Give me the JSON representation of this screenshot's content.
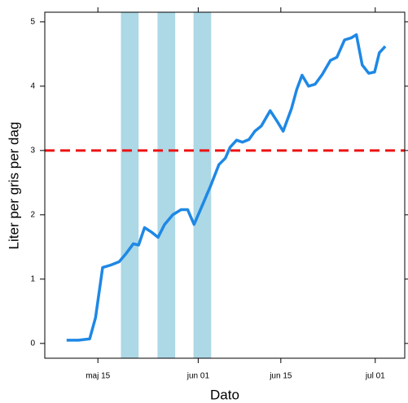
{
  "chart_data": {
    "type": "line",
    "xlabel": "Dato",
    "ylabel": "Liter per gris per dag",
    "x": [
      129.7,
      131.7,
      133.6,
      134.6,
      135.8,
      137.2,
      138.6,
      139.8,
      141.0,
      141.9,
      142.9,
      144.1,
      145.2,
      146.3,
      147.7,
      149.1,
      150.2,
      151.3,
      152.7,
      154.1,
      155.5,
      156.6,
      157.4,
      158.5,
      159.5,
      160.6,
      161.6,
      162.7,
      164.2,
      165.4,
      166.4,
      167.8,
      168.7,
      169.6,
      170.7,
      171.8,
      173.0,
      174.4,
      175.5,
      176.8,
      177.9,
      178.8,
      179.8,
      180.9,
      181.9,
      182.7,
      183.7
    ],
    "series": [
      {
        "color": "#1e88e5",
        "values": [
          0.05,
          0.05,
          0.07,
          0.4,
          1.18,
          1.22,
          1.27,
          1.4,
          1.55,
          1.53,
          1.8,
          1.73,
          1.65,
          1.85,
          2.0,
          2.08,
          2.08,
          1.85,
          2.15,
          2.45,
          2.78,
          2.88,
          3.05,
          3.16,
          3.13,
          3.17,
          3.3,
          3.38,
          3.62,
          3.45,
          3.3,
          3.65,
          3.95,
          4.17,
          4.0,
          4.03,
          4.18,
          4.4,
          4.45,
          4.72,
          4.75,
          4.8,
          4.33,
          4.2,
          4.22,
          4.52,
          4.62
        ]
      }
    ],
    "shaded_ranges": [
      [
        138.9,
        141.9
      ],
      [
        145.1,
        148.1
      ],
      [
        151.2,
        154.2
      ]
    ],
    "shade_color": "#add8e6",
    "hline": 3,
    "hline_color": "#ee1111",
    "xlim": [
      126,
      187
    ],
    "xticks": [
      {
        "value": 135,
        "label": "maj 15"
      },
      {
        "value": 152,
        "label": "jun 01"
      },
      {
        "value": 166,
        "label": "jun 15"
      },
      {
        "value": 182,
        "label": "jul 01"
      }
    ],
    "ylim": [
      -0.23,
      5.15
    ],
    "yticks": [
      0,
      1,
      2,
      3,
      4,
      5
    ]
  }
}
